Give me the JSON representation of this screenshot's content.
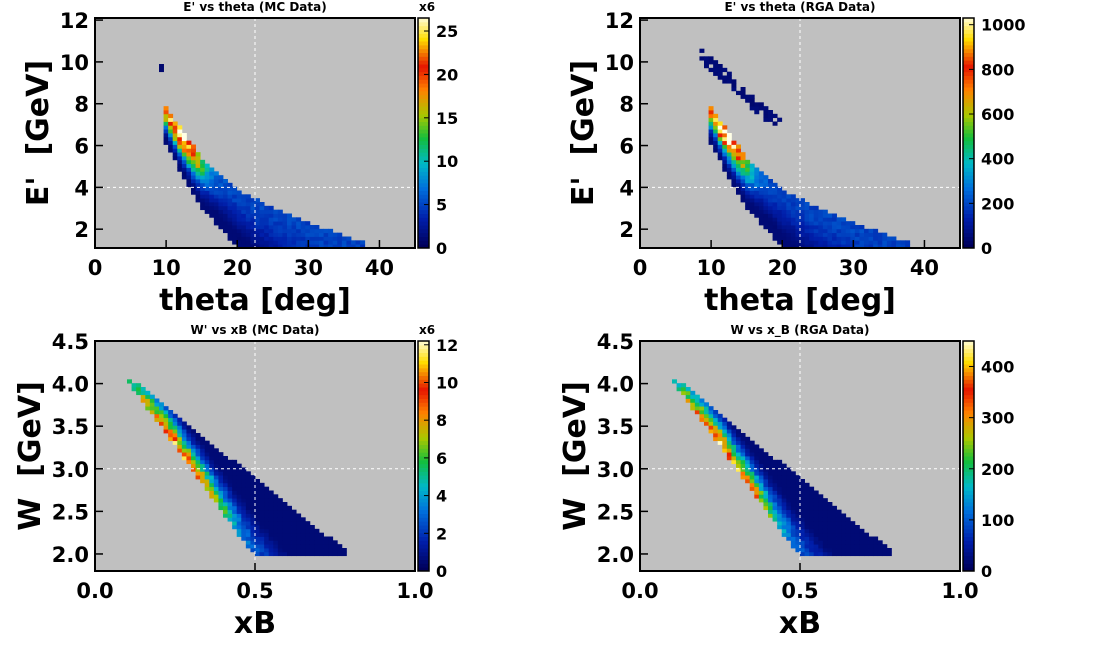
{
  "chart_data": [
    {
      "type": "heatmap",
      "title": "E' vs theta (MC Data)",
      "xlabel": "theta [deg]",
      "ylabel": "E'  [GeV]",
      "xlim": [
        0,
        45
      ],
      "ylim": [
        1.1,
        12.1
      ],
      "xticks": [
        0,
        10,
        20,
        30,
        40
      ],
      "yticks": [
        2,
        4,
        6,
        8,
        10,
        12
      ],
      "colorbar": {
        "range": [
          0,
          26.5
        ],
        "ticks": [
          0,
          5,
          10,
          15,
          20,
          25
        ],
        "multiplier": "x6"
      },
      "grid": true,
      "density_ridge": [
        [
          10,
          7.6
        ],
        [
          12.5,
          6.4
        ],
        [
          15,
          5.2
        ],
        [
          20,
          3.7
        ],
        [
          25,
          2.8
        ],
        [
          30,
          2.1
        ],
        [
          35,
          1.5
        ]
      ],
      "peak": {
        "theta": 12.0,
        "E": 6.3,
        "value": 26
      },
      "stray_points": [
        [
          9.5,
          9.7
        ]
      ]
    },
    {
      "type": "heatmap",
      "title": "E' vs theta  (RGA Data)",
      "xlabel": "theta [deg]",
      "ylabel": "E'  [GeV]",
      "xlim": [
        0,
        45
      ],
      "ylim": [
        1.1,
        12.1
      ],
      "xticks": [
        0,
        10,
        20,
        30,
        40
      ],
      "yticks": [
        2,
        4,
        6,
        8,
        10,
        12
      ],
      "colorbar": {
        "range": [
          0,
          1030
        ],
        "ticks": [
          0,
          200,
          400,
          600,
          800,
          1000
        ],
        "multiplier": ""
      },
      "grid": true,
      "density_ridge": [
        [
          10,
          7.6
        ],
        [
          12.5,
          6.4
        ],
        [
          15,
          5.2
        ],
        [
          20,
          3.7
        ],
        [
          25,
          2.8
        ],
        [
          30,
          2.1
        ],
        [
          35,
          1.5
        ]
      ],
      "peak": {
        "theta": 12.0,
        "E": 6.3,
        "value": 1000
      },
      "elastic_band": [
        [
          8.5,
          10.4
        ],
        [
          12,
          9.3
        ],
        [
          16,
          8.0
        ],
        [
          20,
          7.0
        ]
      ]
    },
    {
      "type": "heatmap",
      "title": "W' vs xB (MC Data)",
      "xlabel": "xB",
      "ylabel": "W  [GeV]",
      "xlim": [
        0,
        1
      ],
      "ylim": [
        1.8,
        4.5
      ],
      "xticks": [
        0.0,
        0.5,
        1.0
      ],
      "yticks": [
        2.0,
        2.5,
        3.0,
        3.5,
        4.0,
        4.5
      ],
      "colorbar": {
        "range": [
          0,
          12.2
        ],
        "ticks": [
          0,
          2,
          4,
          6,
          8,
          10,
          12
        ],
        "multiplier": "x6"
      },
      "grid": true,
      "density_ridge": [
        [
          0.1,
          4.05
        ],
        [
          0.2,
          3.45
        ],
        [
          0.3,
          2.9
        ],
        [
          0.4,
          2.45
        ],
        [
          0.5,
          2.05
        ]
      ],
      "peak": {
        "xB": 0.27,
        "W": 2.95,
        "value": 12
      }
    },
    {
      "type": "heatmap",
      "title": "W vs x_B  (RGA Data)",
      "xlabel": "xB",
      "ylabel": "W  [GeV]",
      "xlim": [
        0,
        1
      ],
      "ylim": [
        1.8,
        4.5
      ],
      "xticks": [
        0.0,
        0.5,
        1.0
      ],
      "yticks": [
        2.0,
        2.5,
        3.0,
        3.5,
        4.0,
        4.5
      ],
      "colorbar": {
        "range": [
          0,
          450
        ],
        "ticks": [
          0,
          100,
          200,
          300,
          400
        ],
        "multiplier": ""
      },
      "grid": true,
      "density_ridge": [
        [
          0.1,
          4.05
        ],
        [
          0.2,
          3.45
        ],
        [
          0.3,
          2.9
        ],
        [
          0.4,
          2.45
        ],
        [
          0.5,
          2.05
        ]
      ],
      "peak": {
        "xB": 0.27,
        "W": 2.95,
        "value": 430
      }
    }
  ],
  "colors": {
    "background": "#c0c0c0",
    "frame": "#000000",
    "grid": "#ffffff"
  }
}
